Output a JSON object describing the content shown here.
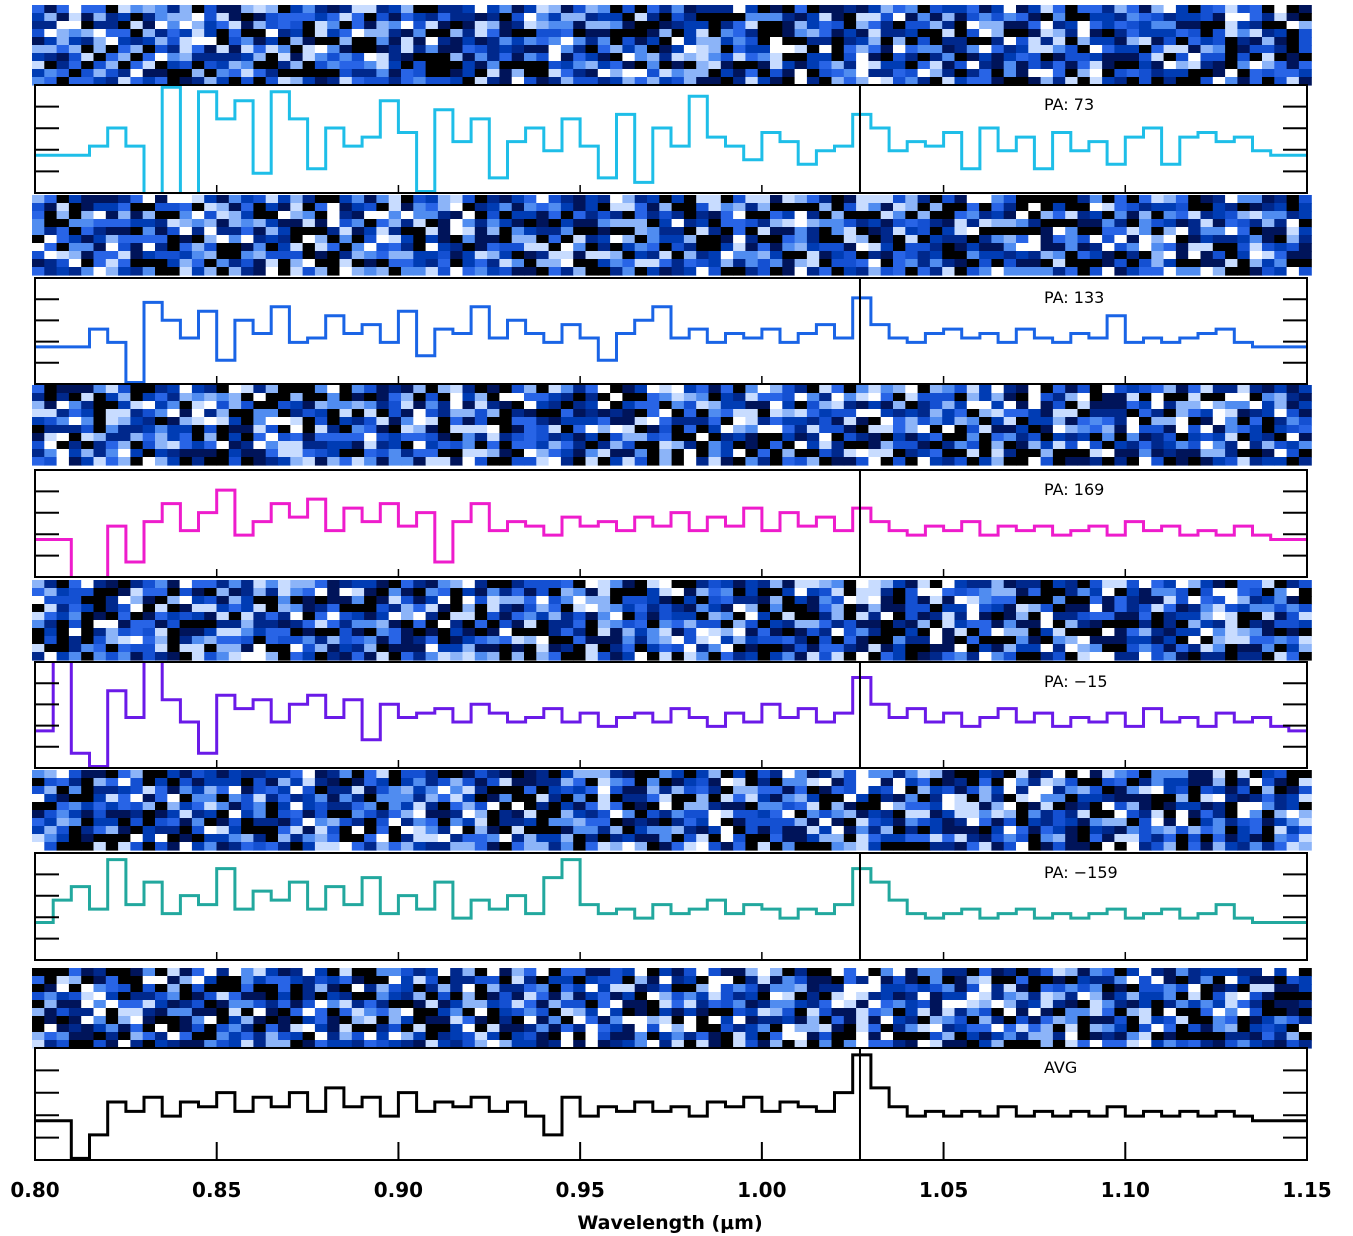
{
  "chart_data": {
    "type": "line",
    "xlabel": "Wavelength (μm)",
    "xlim": [
      0.8,
      1.15
    ],
    "x_ticks": [
      "0.80",
      "0.85",
      "0.90",
      "0.95",
      "1.00",
      "1.05",
      "1.10",
      "1.15"
    ],
    "reference_line_x": 1.027,
    "x": [
      0.8,
      0.805,
      0.81,
      0.815,
      0.82,
      0.825,
      0.83,
      0.835,
      0.84,
      0.845,
      0.85,
      0.855,
      0.86,
      0.865,
      0.87,
      0.875,
      0.88,
      0.885,
      0.89,
      0.895,
      0.9,
      0.905,
      0.91,
      0.915,
      0.92,
      0.925,
      0.93,
      0.935,
      0.94,
      0.945,
      0.95,
      0.955,
      0.96,
      0.965,
      0.97,
      0.975,
      0.98,
      0.985,
      0.99,
      0.995,
      1.0,
      1.005,
      1.01,
      1.015,
      1.02,
      1.025,
      1.03,
      1.035,
      1.04,
      1.045,
      1.05,
      1.055,
      1.06,
      1.065,
      1.07,
      1.075,
      1.08,
      1.085,
      1.09,
      1.095,
      1.1,
      1.105,
      1.11,
      1.115,
      1.12,
      1.125,
      1.13,
      1.135,
      1.14,
      1.145
    ],
    "series": [
      {
        "name": "PA: 73",
        "color": "#1ebee8",
        "values": [
          0,
          0,
          0,
          0.2,
          0.6,
          0.2,
          -1,
          1.5,
          -1,
          1.4,
          0.8,
          1.2,
          -0.4,
          1.4,
          0.8,
          -0.3,
          0.6,
          0.2,
          0.4,
          1.2,
          0.5,
          -0.8,
          1.0,
          0.3,
          0.8,
          -0.5,
          0.3,
          0.6,
          0.1,
          0.8,
          0.2,
          -0.5,
          0.9,
          -0.6,
          0.6,
          0.2,
          1.3,
          0.4,
          0.2,
          -0.1,
          0.5,
          0.3,
          -0.2,
          0.1,
          0.2,
          0.9,
          0.6,
          0.1,
          0.3,
          0.2,
          0.5,
          -0.3,
          0.6,
          0.1,
          0.4,
          -0.3,
          0.5,
          0.1,
          0.3,
          -0.2,
          0.4,
          0.6,
          -0.2,
          0.4,
          0.5,
          0.3,
          0.4,
          0.1,
          0,
          0
        ]
      },
      {
        "name": "PA: 133",
        "color": "#1a64e6",
        "values": [
          0,
          0,
          0,
          0.4,
          0.1,
          -0.8,
          1.0,
          0.6,
          0.2,
          0.8,
          -0.3,
          0.6,
          0.3,
          0.9,
          0.1,
          0.2,
          0.7,
          0.3,
          0.5,
          0.1,
          0.8,
          -0.2,
          0.4,
          0.3,
          0.9,
          0.2,
          0.6,
          0.3,
          0.1,
          0.5,
          0.2,
          -0.3,
          0.3,
          0.6,
          0.9,
          0.2,
          0.4,
          0.1,
          0.3,
          0.2,
          0.4,
          0.1,
          0.3,
          0.5,
          0.2,
          1.1,
          0.5,
          0.2,
          0.1,
          0.3,
          0.4,
          0.2,
          0.3,
          0.1,
          0.4,
          0.2,
          0.1,
          0.3,
          0.2,
          0.7,
          0.1,
          0.2,
          0.1,
          0.2,
          0.3,
          0.4,
          0.1,
          0,
          0,
          0
        ]
      },
      {
        "name": "PA: 169",
        "color": "#ee1ccc",
        "values": [
          0,
          0,
          -1,
          -1,
          0.3,
          -0.5,
          0.4,
          0.8,
          0.2,
          0.6,
          1.1,
          0.1,
          0.4,
          0.8,
          0.5,
          0.9,
          0.2,
          0.7,
          0.4,
          0.8,
          0.3,
          0.6,
          -0.5,
          0.4,
          0.8,
          0.2,
          0.4,
          0.3,
          0.1,
          0.5,
          0.3,
          0.4,
          0.2,
          0.5,
          0.3,
          0.6,
          0.2,
          0.5,
          0.3,
          0.7,
          0.2,
          0.6,
          0.3,
          0.5,
          0.2,
          0.7,
          0.4,
          0.2,
          0.1,
          0.3,
          0.2,
          0.4,
          0.1,
          0.3,
          0.2,
          0.3,
          0.1,
          0.2,
          0.3,
          0.1,
          0.4,
          0.2,
          0.3,
          0.1,
          0.2,
          0.1,
          0.3,
          0.1,
          0,
          0
        ]
      },
      {
        "name": "PA: −15",
        "color": "#6a1ae8",
        "values": [
          0,
          1.6,
          -0.5,
          -0.8,
          0.9,
          0.3,
          1.6,
          0.7,
          0.2,
          -0.5,
          0.8,
          0.5,
          0.7,
          0.2,
          0.6,
          0.8,
          0.3,
          0.7,
          -0.2,
          0.6,
          0.3,
          0.4,
          0.5,
          0.2,
          0.6,
          0.4,
          0.2,
          0.3,
          0.5,
          0.2,
          0.4,
          0.1,
          0.3,
          0.4,
          0.2,
          0.5,
          0.3,
          0.1,
          0.4,
          0.2,
          0.6,
          0.3,
          0.5,
          0.2,
          0.4,
          1.2,
          0.6,
          0.3,
          0.5,
          0.2,
          0.4,
          0.1,
          0.3,
          0.5,
          0.2,
          0.4,
          0.1,
          0.3,
          0.2,
          0.4,
          0.1,
          0.5,
          0.2,
          0.3,
          0.1,
          0.4,
          0.2,
          0.3,
          0.1,
          0
        ]
      },
      {
        "name": "PA: −159",
        "color": "#22a89e",
        "values": [
          0,
          0.5,
          0.8,
          0.3,
          1.4,
          0.4,
          0.9,
          0.2,
          0.6,
          0.4,
          1.2,
          0.3,
          0.7,
          0.5,
          0.9,
          0.3,
          0.8,
          0.4,
          1.0,
          0.2,
          0.6,
          0.3,
          0.9,
          0.1,
          0.5,
          0.3,
          0.6,
          0.2,
          1.0,
          1.4,
          0.4,
          0.2,
          0.3,
          0.1,
          0.4,
          0.2,
          0.3,
          0.5,
          0.2,
          0.4,
          0.3,
          0.1,
          0.3,
          0.2,
          0.4,
          1.2,
          0.9,
          0.5,
          0.2,
          0.1,
          0.2,
          0.3,
          0.1,
          0.2,
          0.3,
          0.1,
          0.2,
          0.1,
          0.2,
          0.3,
          0.1,
          0.2,
          0.3,
          0.1,
          0.2,
          0.4,
          0.1,
          0,
          0,
          0
        ]
      },
      {
        "name": "AVG",
        "color": "#000000",
        "values": [
          0,
          0,
          -0.8,
          -0.3,
          0.4,
          0.2,
          0.5,
          0.1,
          0.4,
          0.3,
          0.6,
          0.2,
          0.5,
          0.3,
          0.6,
          0.2,
          0.7,
          0.3,
          0.5,
          0.1,
          0.6,
          0.2,
          0.4,
          0.3,
          0.5,
          0.2,
          0.4,
          0.1,
          -0.3,
          0.5,
          0.1,
          0.3,
          0.2,
          0.4,
          0.2,
          0.3,
          0.1,
          0.4,
          0.3,
          0.5,
          0.2,
          0.4,
          0.3,
          0.2,
          0.6,
          1.4,
          0.7,
          0.3,
          0.1,
          0.2,
          0.1,
          0.2,
          0.1,
          0.3,
          0.1,
          0.2,
          0.1,
          0.2,
          0.1,
          0.3,
          0.1,
          0.2,
          0.1,
          0.2,
          0.1,
          0.2,
          0.1,
          0,
          0,
          0
        ]
      }
    ]
  },
  "colors": {
    "strip_palette": [
      "#000000",
      "#00145a",
      "#00288c",
      "#003cb4",
      "#1450d2",
      "#2864e6",
      "#508cf0",
      "#8cb4f8",
      "#c8dcff",
      "#ffffff"
    ]
  }
}
